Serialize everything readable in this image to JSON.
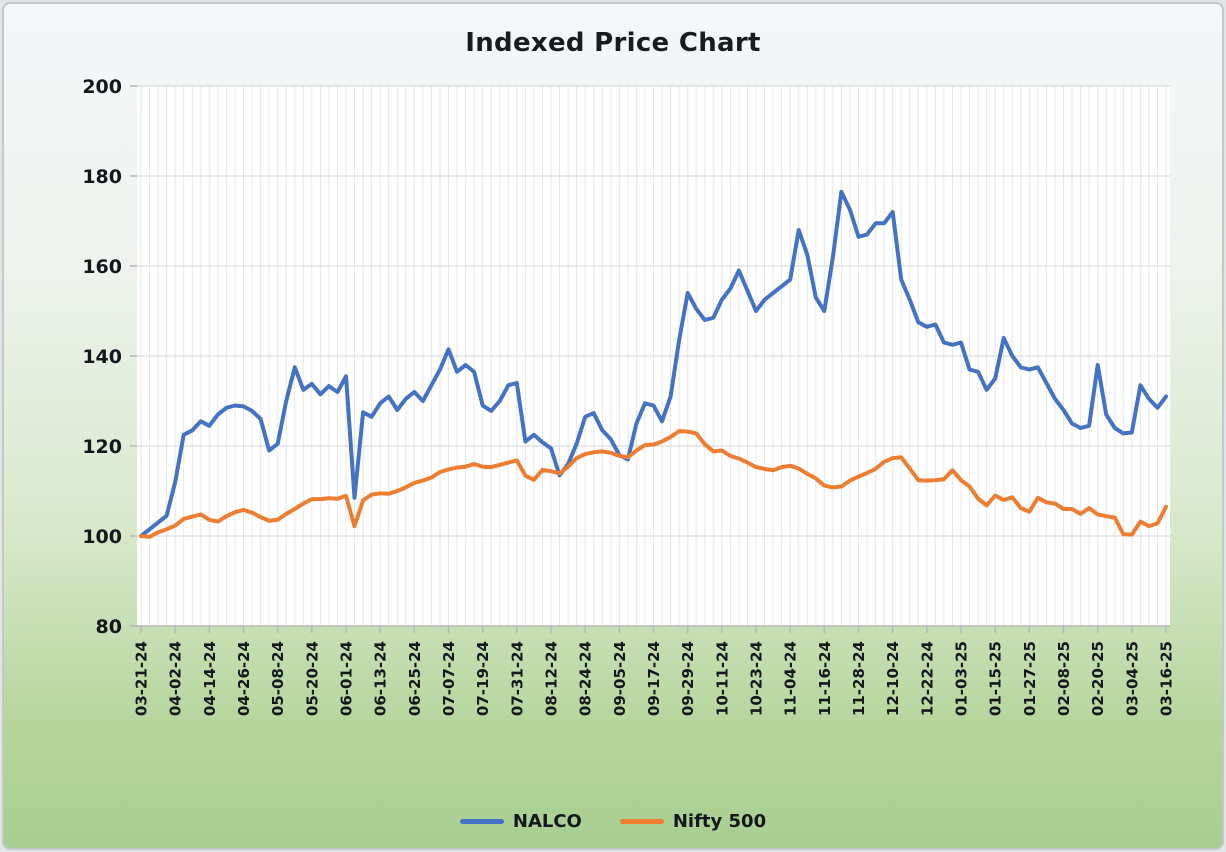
{
  "title": "Indexed Price Chart",
  "chart_data": {
    "type": "line",
    "title": "Indexed Price Chart",
    "grid": true,
    "legend_position": "bottom",
    "ylim": [
      80,
      200
    ],
    "y_ticks": [
      80,
      100,
      120,
      140,
      160,
      180,
      200
    ],
    "x_label_every": 4,
    "x_tick_labels": [
      "03-21-24",
      "04-02-24",
      "04-14-24",
      "04-26-24",
      "05-08-24",
      "05-20-24",
      "06-01-24",
      "06-13-24",
      "06-25-24",
      "07-07-24",
      "07-19-24",
      "07-31-24",
      "08-12-24",
      "08-24-24",
      "09-05-24",
      "09-17-24",
      "09-29-24",
      "10-11-24",
      "10-23-24",
      "11-04-24",
      "11-16-24",
      "11-28-24",
      "12-10-24",
      "12-22-24",
      "01-03-25",
      "01-15-25",
      "01-27-25",
      "02-08-25",
      "02-20-25",
      "03-04-25",
      "03-16-25"
    ],
    "x": [
      "03-21-24",
      "03-24-24",
      "03-27-24",
      "03-30-24",
      "04-02-24",
      "04-05-24",
      "04-08-24",
      "04-11-24",
      "04-14-24",
      "04-17-24",
      "04-20-24",
      "04-23-24",
      "04-26-24",
      "04-29-24",
      "05-02-24",
      "05-05-24",
      "05-08-24",
      "05-11-24",
      "05-14-24",
      "05-17-24",
      "05-20-24",
      "05-23-24",
      "05-26-24",
      "05-29-24",
      "06-01-24",
      "06-04-24",
      "06-07-24",
      "06-10-24",
      "06-13-24",
      "06-16-24",
      "06-19-24",
      "06-22-24",
      "06-25-24",
      "06-28-24",
      "07-01-24",
      "07-04-24",
      "07-07-24",
      "07-10-24",
      "07-13-24",
      "07-16-24",
      "07-19-24",
      "07-22-24",
      "07-25-24",
      "07-28-24",
      "07-31-24",
      "08-03-24",
      "08-06-24",
      "08-09-24",
      "08-12-24",
      "08-15-24",
      "08-18-24",
      "08-21-24",
      "08-24-24",
      "08-27-24",
      "08-30-24",
      "09-02-24",
      "09-05-24",
      "09-08-24",
      "09-11-24",
      "09-14-24",
      "09-17-24",
      "09-20-24",
      "09-23-24",
      "09-26-24",
      "09-29-24",
      "10-02-24",
      "10-05-24",
      "10-08-24",
      "10-11-24",
      "10-14-24",
      "10-17-24",
      "10-20-24",
      "10-23-24",
      "10-26-24",
      "10-29-24",
      "11-01-24",
      "11-04-24",
      "11-07-24",
      "11-10-24",
      "11-13-24",
      "11-16-24",
      "11-19-24",
      "11-22-24",
      "11-25-24",
      "11-28-24",
      "12-01-24",
      "12-04-24",
      "12-07-24",
      "12-10-24",
      "12-13-24",
      "12-16-24",
      "12-19-24",
      "12-22-24",
      "12-25-24",
      "12-28-24",
      "12-31-24",
      "01-03-25",
      "01-06-25",
      "01-09-25",
      "01-12-25",
      "01-15-25",
      "01-18-25",
      "01-21-25",
      "01-24-25",
      "01-27-25",
      "01-30-25",
      "02-02-25",
      "02-05-25",
      "02-08-25",
      "02-11-25",
      "02-14-25",
      "02-17-25",
      "02-20-25",
      "02-23-25",
      "02-26-25",
      "03-01-25",
      "03-04-25",
      "03-07-25",
      "03-10-25",
      "03-13-25",
      "03-16-25"
    ],
    "series": [
      {
        "name": "NALCO",
        "color": "#4472C4",
        "values": [
          100,
          101.5,
          103,
          104.5,
          112,
          122.5,
          123.5,
          125.5,
          124.5,
          127,
          128.5,
          129,
          128.8,
          127.8,
          126,
          119,
          120.5,
          130,
          137.5,
          132.5,
          133.8,
          131.5,
          133.3,
          132,
          135.5,
          108.5,
          127.5,
          126.5,
          129.5,
          131,
          128,
          130.5,
          132,
          130,
          133.5,
          137,
          141.5,
          136.5,
          138,
          136.5,
          129,
          127.8,
          130,
          133.5,
          134,
          121,
          122.5,
          120.8,
          119.5,
          113.5,
          116,
          120.5,
          126.5,
          127.3,
          123.5,
          121.5,
          118,
          117,
          125,
          129.5,
          129,
          125.5,
          131,
          143.5,
          154,
          150.5,
          148,
          148.5,
          152.5,
          155,
          159,
          154.5,
          150,
          152.5,
          154,
          155.5,
          157,
          168,
          162.5,
          153,
          150,
          162,
          176.5,
          172.5,
          166.5,
          167,
          169.5,
          169.5,
          172,
          157,
          152.5,
          147.5,
          146.5,
          147,
          143,
          142.5,
          143,
          137,
          136.5,
          132.5,
          135,
          144,
          140,
          137.5,
          137,
          137.5,
          134,
          130.5,
          128,
          125,
          124,
          124.5,
          138,
          127,
          124,
          122.8,
          123,
          133.5,
          130.5,
          128.5,
          131
        ]
      },
      {
        "name": "Nifty 500",
        "color": "#ED7D31",
        "values": [
          100,
          99.8,
          100.8,
          101.5,
          102.3,
          103.8,
          104.3,
          104.8,
          103.6,
          103.2,
          104.4,
          105.3,
          105.8,
          105.2,
          104.2,
          103.4,
          103.6,
          104.9,
          106,
          107.2,
          108.2,
          108.2,
          108.4,
          108.3,
          108.9,
          102.2,
          107.9,
          109.2,
          109.5,
          109.4,
          110,
          110.8,
          111.8,
          112.3,
          113,
          114.2,
          114.8,
          115.2,
          115.4,
          116,
          115.4,
          115.3,
          115.8,
          116.3,
          116.8,
          113.4,
          112.5,
          114.7,
          114.4,
          113.9,
          115.4,
          117.3,
          118.2,
          118.6,
          118.8,
          118.5,
          117.8,
          117.5,
          119,
          120.2,
          120.3,
          121,
          122,
          123.3,
          123.2,
          122.8,
          120.4,
          118.8,
          119,
          117.8,
          117.2,
          116.3,
          115.3,
          114.9,
          114.6,
          115.3,
          115.6,
          115,
          113.8,
          112.8,
          111.2,
          110.8,
          111,
          112.3,
          113.2,
          114,
          114.9,
          116.5,
          117.3,
          117.5,
          115,
          112.4,
          112.3,
          112.4,
          112.6,
          114.6,
          112.4,
          111,
          108.3,
          106.8,
          109,
          108,
          108.6,
          106.2,
          105.4,
          108.5,
          107.5,
          107.2,
          106,
          106,
          104.9,
          106.2,
          104.8,
          104.4,
          104.1,
          100.4,
          100.3,
          103.2,
          102.2,
          102.8,
          106.5
        ]
      }
    ]
  }
}
